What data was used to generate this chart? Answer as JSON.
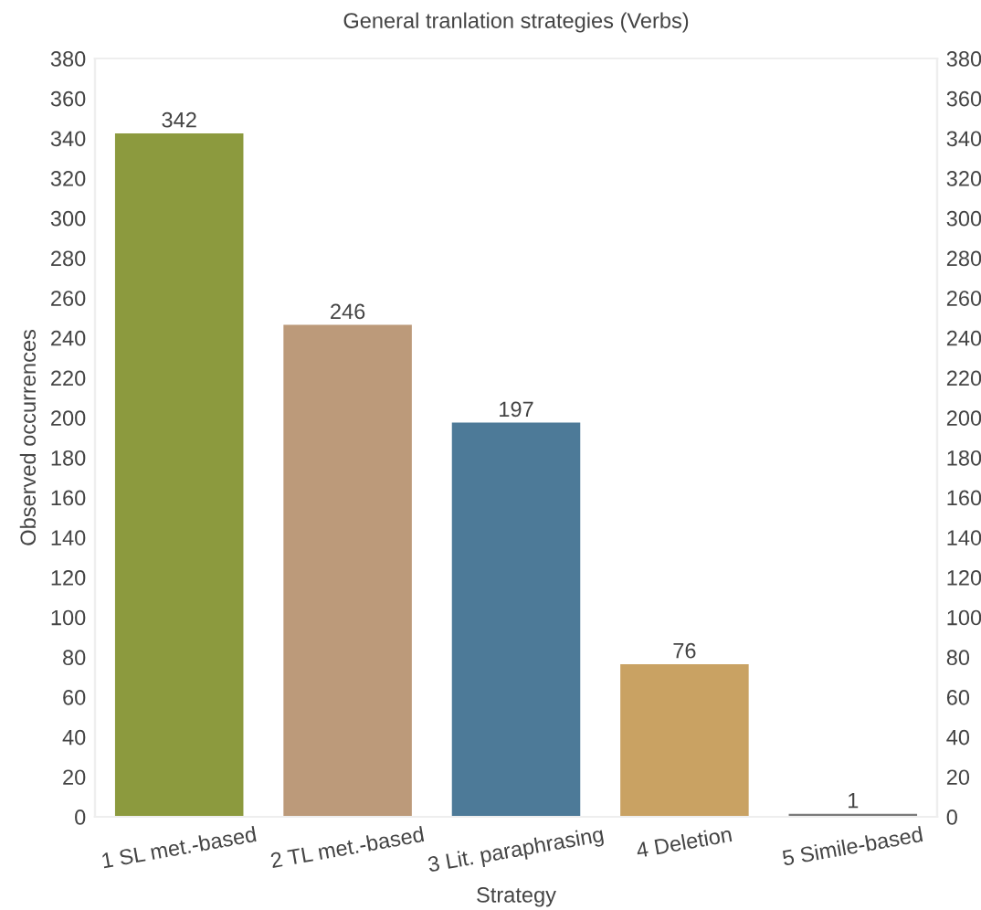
{
  "chart_data": {
    "type": "bar",
    "title": "General tranlation strategies (Verbs)",
    "xlabel": "Strategy",
    "ylabel": "Observed occurrences",
    "categories": [
      "1 SL met.-based",
      "2 TL met.-based",
      "3 Lit. paraphrasing",
      "4 Deletion",
      "5 Simile-based"
    ],
    "values": [
      342,
      246,
      197,
      76,
      1
    ],
    "colors": [
      "#8c9a3e",
      "#bc9a7a",
      "#4d7a98",
      "#c9a263",
      "#7a7a7a"
    ],
    "ylim": [
      0,
      380
    ],
    "yticks": [
      0,
      20,
      40,
      60,
      80,
      100,
      120,
      140,
      160,
      180,
      200,
      220,
      240,
      260,
      280,
      300,
      320,
      340,
      360,
      380
    ],
    "y2lim": [
      0,
      380
    ],
    "y2ticks": [
      0,
      20,
      40,
      60,
      80,
      100,
      120,
      140,
      160,
      180,
      200,
      220,
      240,
      260,
      280,
      300,
      320,
      340,
      360,
      380
    ],
    "data_labels": true,
    "grid": false,
    "legend": false
  }
}
